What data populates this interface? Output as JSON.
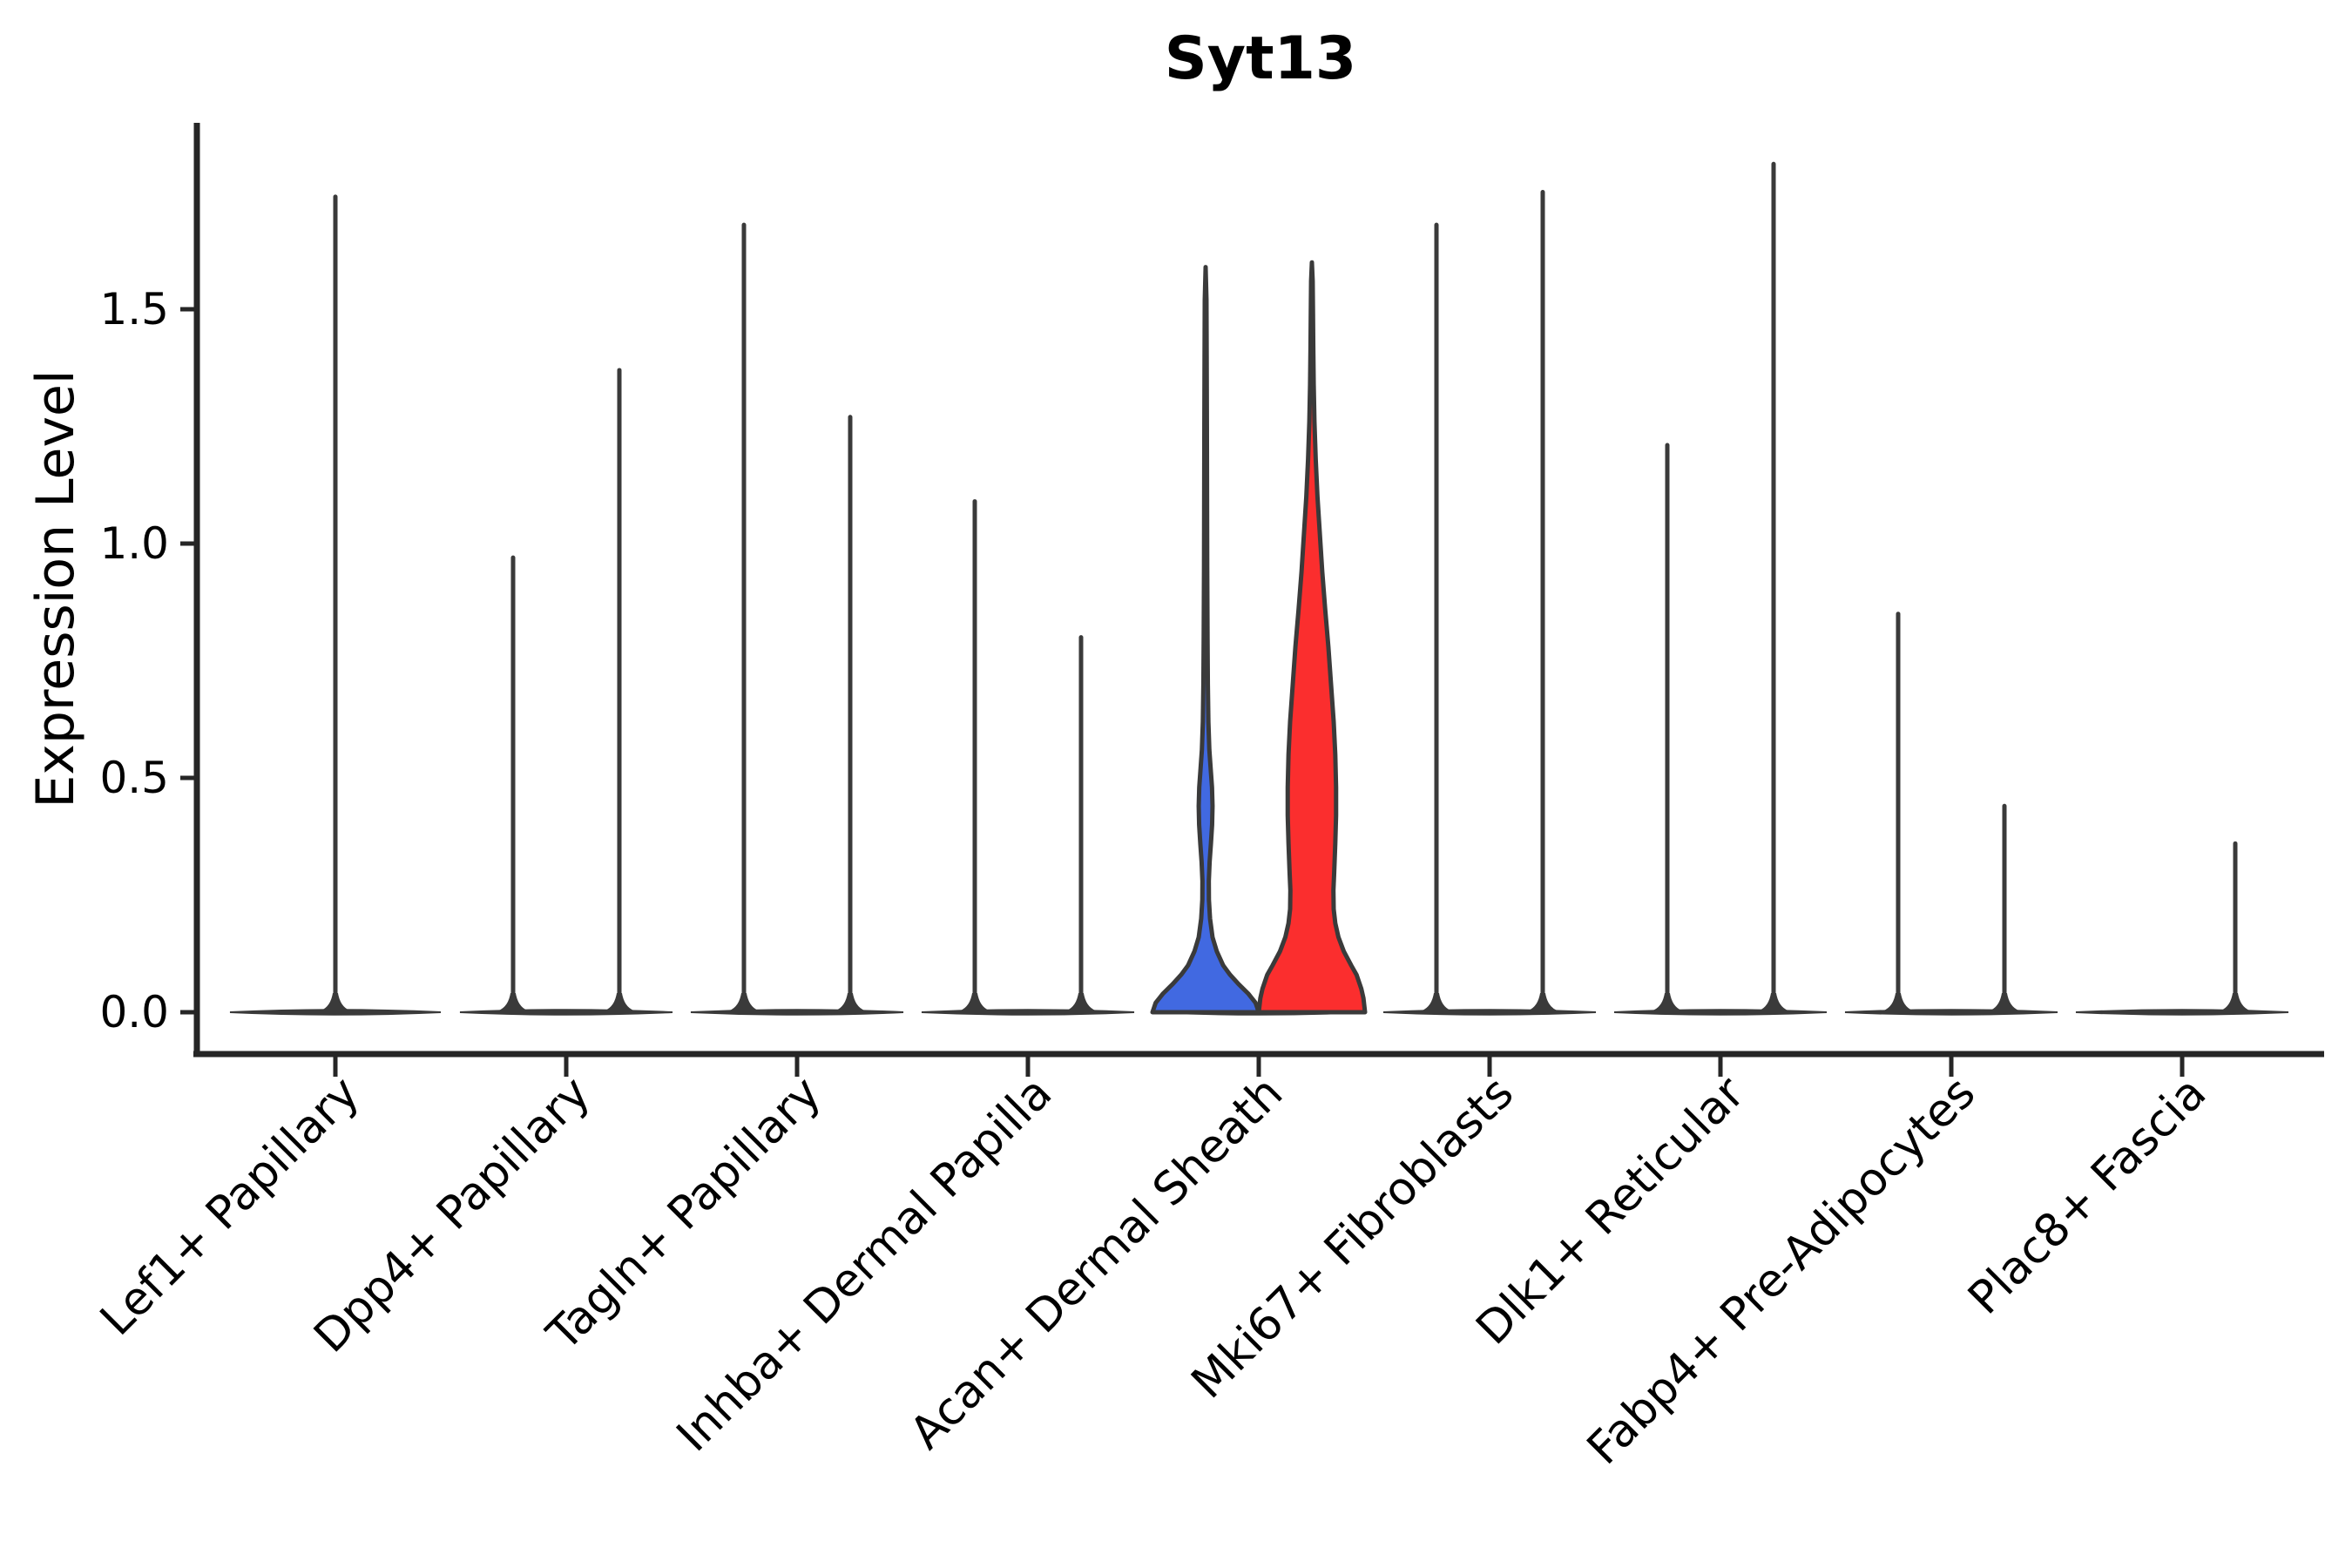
{
  "chart_data": {
    "type": "violin",
    "title": "Syt13",
    "ylabel": "Expression Level",
    "xlabel": "",
    "ylim": [
      0,
      1.9
    ],
    "grid": false,
    "legend": "none",
    "yticks": [
      {
        "value": 0.0,
        "label": "0.0"
      },
      {
        "value": 0.5,
        "label": "0.5"
      },
      {
        "value": 1.0,
        "label": "1.0"
      },
      {
        "value": 1.5,
        "label": "1.5"
      }
    ],
    "colors": {
      "highlight_blue": "#4169e1",
      "highlight_red": "#fb2e2e",
      "outline": "#3a3a3a",
      "axis": "#262626",
      "text": "#000000",
      "background": "#ffffff"
    },
    "categories": [
      {
        "label": "Lef1+ Papillary",
        "violins": [
          {
            "side": "center",
            "max": 1.74,
            "fill": null
          }
        ]
      },
      {
        "label": "Dpp4+ Papillary",
        "violins": [
          {
            "side": "left",
            "max": 0.97,
            "fill": null
          },
          {
            "side": "right",
            "max": 1.37,
            "fill": null
          }
        ]
      },
      {
        "label": "Tagln+ Papillary",
        "violins": [
          {
            "side": "left",
            "max": 1.68,
            "fill": null
          },
          {
            "side": "right",
            "max": 1.27,
            "fill": null
          }
        ]
      },
      {
        "label": "Inhba+ Dermal Papilla",
        "violins": [
          {
            "side": "left",
            "max": 1.09,
            "fill": null
          },
          {
            "side": "right",
            "max": 0.8,
            "fill": null
          }
        ]
      },
      {
        "label": "Acan+ Dermal Sheath",
        "violins": [
          {
            "side": "left",
            "max": 1.59,
            "fill": "#4169e1",
            "profile": [
              [
                0,
                1.0
              ],
              [
                0.02,
                0.94
              ],
              [
                0.04,
                0.8
              ],
              [
                0.06,
                0.62
              ],
              [
                0.08,
                0.46
              ],
              [
                0.1,
                0.33
              ],
              [
                0.13,
                0.21
              ],
              [
                0.16,
                0.13
              ],
              [
                0.2,
                0.083
              ],
              [
                0.24,
                0.062
              ],
              [
                0.28,
                0.06
              ],
              [
                0.32,
                0.075
              ],
              [
                0.36,
                0.1
              ],
              [
                0.4,
                0.122
              ],
              [
                0.44,
                0.13
              ],
              [
                0.48,
                0.12
              ],
              [
                0.52,
                0.095
              ],
              [
                0.56,
                0.07
              ],
              [
                0.62,
                0.052
              ],
              [
                0.7,
                0.042
              ],
              [
                0.8,
                0.036
              ],
              [
                0.95,
                0.03
              ],
              [
                1.1,
                0.027
              ],
              [
                1.25,
                0.024
              ],
              [
                1.4,
                0.02
              ],
              [
                1.52,
                0.016
              ],
              [
                1.59,
                0.0
              ]
            ]
          },
          {
            "side": "right",
            "max": 1.6,
            "fill": "#fb2e2e",
            "profile": [
              [
                0,
                1.0
              ],
              [
                0.03,
                0.97
              ],
              [
                0.05,
                0.93
              ],
              [
                0.08,
                0.84
              ],
              [
                0.1,
                0.74
              ],
              [
                0.13,
                0.6
              ],
              [
                0.16,
                0.5
              ],
              [
                0.19,
                0.44
              ],
              [
                0.22,
                0.41
              ],
              [
                0.26,
                0.405
              ],
              [
                0.3,
                0.42
              ],
              [
                0.36,
                0.44
              ],
              [
                0.42,
                0.455
              ],
              [
                0.48,
                0.455
              ],
              [
                0.55,
                0.44
              ],
              [
                0.62,
                0.41
              ],
              [
                0.7,
                0.36
              ],
              [
                0.78,
                0.31
              ],
              [
                0.86,
                0.25
              ],
              [
                0.94,
                0.195
              ],
              [
                1.02,
                0.15
              ],
              [
                1.1,
                0.105
              ],
              [
                1.18,
                0.072
              ],
              [
                1.26,
                0.048
              ],
              [
                1.34,
                0.034
              ],
              [
                1.42,
                0.026
              ],
              [
                1.5,
                0.02
              ],
              [
                1.56,
                0.015
              ],
              [
                1.6,
                0.0
              ]
            ]
          }
        ]
      },
      {
        "label": "Mki67+ Fibroblasts",
        "violins": [
          {
            "side": "left",
            "max": 1.68,
            "fill": null
          },
          {
            "side": "right",
            "max": 1.75,
            "fill": null
          }
        ]
      },
      {
        "label": "Dlk1+ Reticular",
        "violins": [
          {
            "side": "left",
            "max": 1.21,
            "fill": null
          },
          {
            "side": "right",
            "max": 1.81,
            "fill": null
          }
        ]
      },
      {
        "label": "Fabp4+ Pre-Adipocytes",
        "violins": [
          {
            "side": "left",
            "max": 0.85,
            "fill": null
          },
          {
            "side": "right",
            "max": 0.44,
            "fill": null
          }
        ]
      },
      {
        "label": "Plac8+ Fascia",
        "violins": [
          {
            "side": "left",
            "max": 0.0,
            "fill": null
          },
          {
            "side": "right",
            "max": 0.36,
            "fill": null
          }
        ]
      }
    ]
  }
}
